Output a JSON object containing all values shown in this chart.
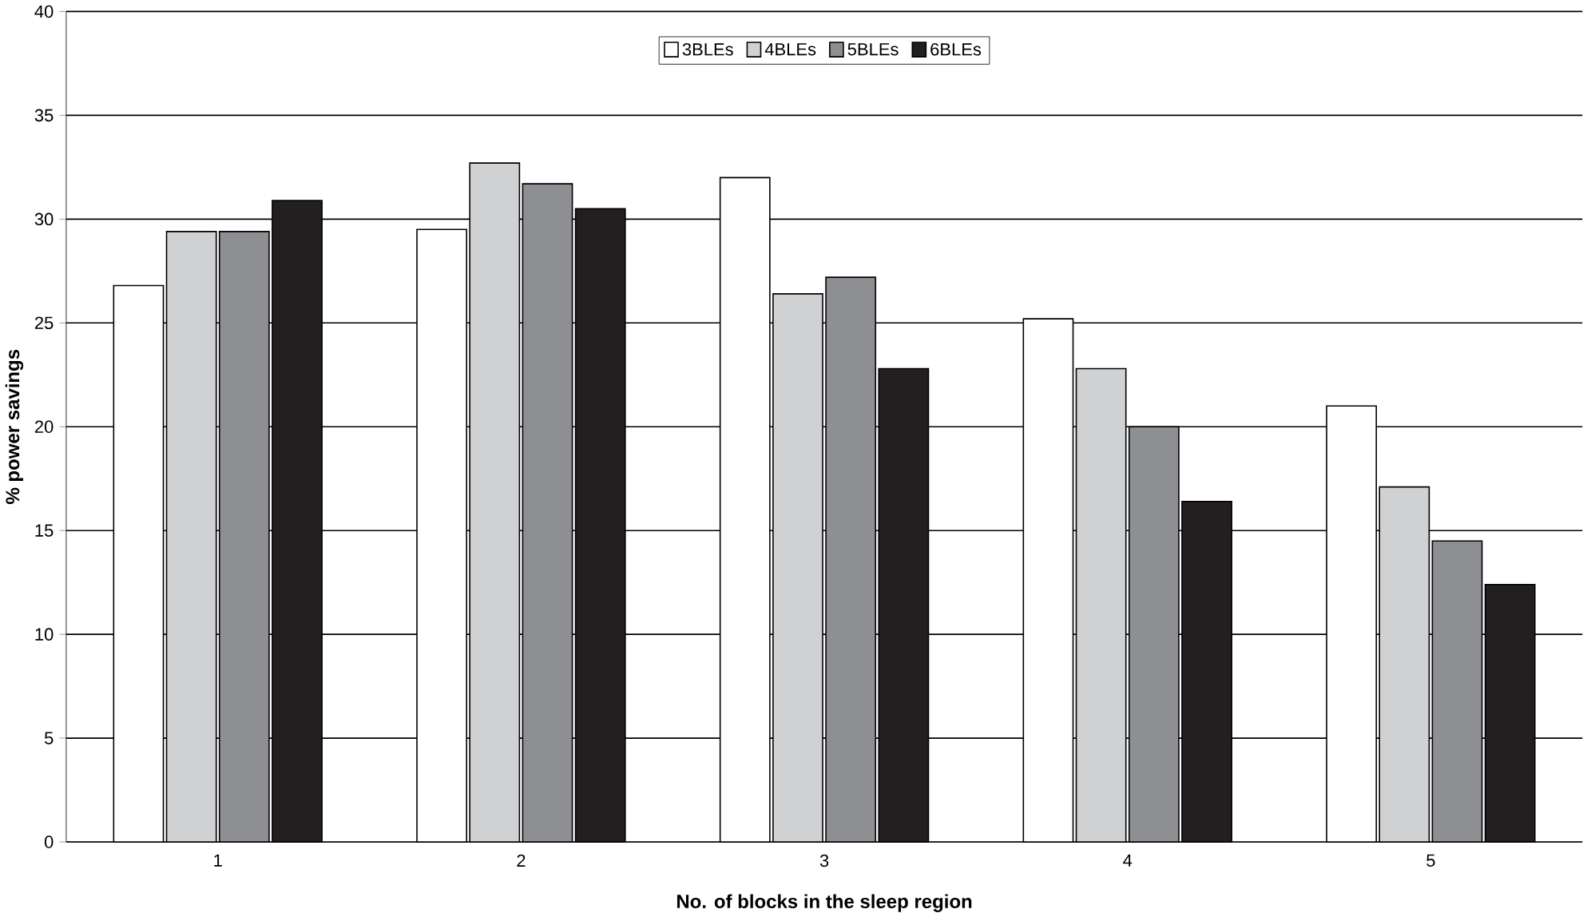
{
  "chart_data": {
    "type": "bar",
    "xlabel": "No. of blocks in the sleep region",
    "ylabel": "% power savings",
    "categories": [
      "1",
      "2",
      "3",
      "4",
      "5"
    ],
    "series": [
      {
        "name": "3BLEs",
        "color": "#ffffff",
        "values": [
          26.8,
          29.5,
          32.0,
          25.2,
          21.0
        ]
      },
      {
        "name": "4BLEs",
        "color": "#d0d1d3",
        "values": [
          29.4,
          32.7,
          26.4,
          22.8,
          17.1
        ]
      },
      {
        "name": "5BLEs",
        "color": "#8e8f93",
        "values": [
          29.4,
          31.7,
          27.2,
          20.0,
          14.5
        ]
      },
      {
        "name": "6BLEs",
        "color": "#231f20",
        "values": [
          30.9,
          30.5,
          22.8,
          16.4,
          12.4
        ]
      }
    ],
    "ylim": [
      0,
      40
    ],
    "yticks": [
      0,
      5,
      10,
      15,
      20,
      25,
      30,
      35,
      40
    ],
    "grid": "y",
    "legend": "top"
  }
}
